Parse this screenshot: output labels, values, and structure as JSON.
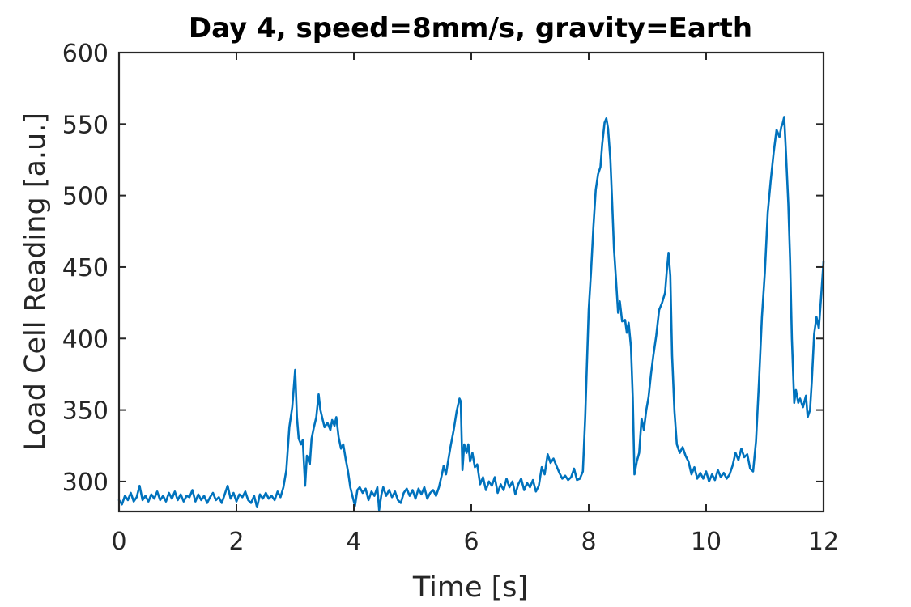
{
  "chart_data": {
    "type": "line",
    "title": "Day 4, speed=8mm/s, gravity=Earth",
    "xlabel": "Time [s]",
    "ylabel": "Load Cell Reading [a.u.]",
    "xlim": [
      0,
      12
    ],
    "ylim": [
      279,
      600
    ],
    "x_ticks": [
      0,
      2,
      4,
      6,
      8,
      10,
      12
    ],
    "y_ticks": [
      300,
      350,
      400,
      450,
      500,
      550,
      600
    ],
    "x_tick_labels": [
      "0",
      "2",
      "4",
      "6",
      "8",
      "10",
      "12"
    ],
    "y_tick_labels": [
      "300",
      "350",
      "400",
      "450",
      "500",
      "550",
      "600"
    ],
    "grid": false,
    "box": true,
    "series": [
      {
        "color": "#0072BD",
        "points": [
          [
            0.0,
            287
          ],
          [
            0.05,
            284
          ],
          [
            0.1,
            290
          ],
          [
            0.15,
            287
          ],
          [
            0.2,
            292
          ],
          [
            0.25,
            286
          ],
          [
            0.3,
            289
          ],
          [
            0.35,
            297
          ],
          [
            0.4,
            287
          ],
          [
            0.45,
            290
          ],
          [
            0.5,
            286
          ],
          [
            0.55,
            291
          ],
          [
            0.6,
            288
          ],
          [
            0.65,
            293
          ],
          [
            0.7,
            287
          ],
          [
            0.75,
            290
          ],
          [
            0.8,
            286
          ],
          [
            0.85,
            292
          ],
          [
            0.9,
            288
          ],
          [
            0.95,
            293
          ],
          [
            1.0,
            287
          ],
          [
            1.05,
            291
          ],
          [
            1.1,
            286
          ],
          [
            1.15,
            290
          ],
          [
            1.2,
            289
          ],
          [
            1.25,
            294
          ],
          [
            1.3,
            286
          ],
          [
            1.35,
            291
          ],
          [
            1.4,
            287
          ],
          [
            1.45,
            290
          ],
          [
            1.5,
            285
          ],
          [
            1.55,
            289
          ],
          [
            1.6,
            292
          ],
          [
            1.65,
            287
          ],
          [
            1.7,
            289
          ],
          [
            1.75,
            285
          ],
          [
            1.8,
            291
          ],
          [
            1.85,
            297
          ],
          [
            1.9,
            288
          ],
          [
            1.95,
            292
          ],
          [
            2.0,
            286
          ],
          [
            2.05,
            291
          ],
          [
            2.1,
            289
          ],
          [
            2.15,
            293
          ],
          [
            2.2,
            287
          ],
          [
            2.25,
            285
          ],
          [
            2.3,
            290
          ],
          [
            2.35,
            282
          ],
          [
            2.4,
            291
          ],
          [
            2.45,
            288
          ],
          [
            2.5,
            292
          ],
          [
            2.55,
            288
          ],
          [
            2.6,
            290
          ],
          [
            2.65,
            287
          ],
          [
            2.7,
            293
          ],
          [
            2.75,
            289
          ],
          [
            2.8,
            296
          ],
          [
            2.85,
            308
          ],
          [
            2.9,
            338
          ],
          [
            2.95,
            352
          ],
          [
            3.0,
            378
          ],
          [
            3.03,
            345
          ],
          [
            3.06,
            330
          ],
          [
            3.1,
            326
          ],
          [
            3.13,
            329
          ],
          [
            3.17,
            297
          ],
          [
            3.2,
            318
          ],
          [
            3.25,
            312
          ],
          [
            3.28,
            330
          ],
          [
            3.32,
            338
          ],
          [
            3.36,
            345
          ],
          [
            3.4,
            361
          ],
          [
            3.43,
            350
          ],
          [
            3.47,
            343
          ],
          [
            3.5,
            338
          ],
          [
            3.55,
            341
          ],
          [
            3.6,
            336
          ],
          [
            3.63,
            343
          ],
          [
            3.67,
            339
          ],
          [
            3.7,
            345
          ],
          [
            3.74,
            331
          ],
          [
            3.78,
            323
          ],
          [
            3.82,
            326
          ],
          [
            3.86,
            316
          ],
          [
            3.9,
            307
          ],
          [
            3.94,
            296
          ],
          [
            3.98,
            289
          ],
          [
            4.02,
            283
          ],
          [
            4.06,
            294
          ],
          [
            4.1,
            296
          ],
          [
            4.15,
            292
          ],
          [
            4.2,
            295
          ],
          [
            4.25,
            287
          ],
          [
            4.3,
            293
          ],
          [
            4.35,
            290
          ],
          [
            4.4,
            296
          ],
          [
            4.43,
            280
          ],
          [
            4.47,
            291
          ],
          [
            4.5,
            296
          ],
          [
            4.55,
            290
          ],
          [
            4.6,
            294
          ],
          [
            4.65,
            289
          ],
          [
            4.7,
            293
          ],
          [
            4.75,
            287
          ],
          [
            4.8,
            285
          ],
          [
            4.85,
            292
          ],
          [
            4.9,
            295
          ],
          [
            4.95,
            290
          ],
          [
            5.0,
            294
          ],
          [
            5.05,
            288
          ],
          [
            5.1,
            295
          ],
          [
            5.15,
            291
          ],
          [
            5.2,
            296
          ],
          [
            5.25,
            288
          ],
          [
            5.3,
            292
          ],
          [
            5.35,
            294
          ],
          [
            5.4,
            290
          ],
          [
            5.45,
            296
          ],
          [
            5.5,
            305
          ],
          [
            5.53,
            311
          ],
          [
            5.57,
            305
          ],
          [
            5.6,
            313
          ],
          [
            5.65,
            325
          ],
          [
            5.7,
            336
          ],
          [
            5.75,
            349
          ],
          [
            5.8,
            358
          ],
          [
            5.82,
            356
          ],
          [
            5.85,
            308
          ],
          [
            5.88,
            326
          ],
          [
            5.92,
            320
          ],
          [
            5.95,
            326
          ],
          [
            5.98,
            314
          ],
          [
            6.02,
            320
          ],
          [
            6.06,
            310
          ],
          [
            6.1,
            312
          ],
          [
            6.15,
            298
          ],
          [
            6.2,
            303
          ],
          [
            6.25,
            294
          ],
          [
            6.3,
            300
          ],
          [
            6.35,
            297
          ],
          [
            6.4,
            303
          ],
          [
            6.45,
            292
          ],
          [
            6.5,
            298
          ],
          [
            6.55,
            294
          ],
          [
            6.6,
            302
          ],
          [
            6.65,
            296
          ],
          [
            6.7,
            300
          ],
          [
            6.75,
            291
          ],
          [
            6.8,
            298
          ],
          [
            6.85,
            302
          ],
          [
            6.9,
            294
          ],
          [
            6.95,
            299
          ],
          [
            7.0,
            296
          ],
          [
            7.05,
            301
          ],
          [
            7.1,
            293
          ],
          [
            7.15,
            297
          ],
          [
            7.2,
            310
          ],
          [
            7.25,
            305
          ],
          [
            7.3,
            319
          ],
          [
            7.35,
            313
          ],
          [
            7.4,
            316
          ],
          [
            7.45,
            311
          ],
          [
            7.5,
            306
          ],
          [
            7.55,
            302
          ],
          [
            7.6,
            304
          ],
          [
            7.65,
            301
          ],
          [
            7.7,
            303
          ],
          [
            7.75,
            309
          ],
          [
            7.8,
            301
          ],
          [
            7.85,
            302
          ],
          [
            7.9,
            307
          ],
          [
            7.94,
            345
          ],
          [
            7.97,
            382
          ],
          [
            8.0,
            420
          ],
          [
            8.04,
            447
          ],
          [
            8.08,
            478
          ],
          [
            8.12,
            504
          ],
          [
            8.16,
            515
          ],
          [
            8.2,
            520
          ],
          [
            8.23,
            536
          ],
          [
            8.27,
            551
          ],
          [
            8.3,
            554
          ],
          [
            8.33,
            547
          ],
          [
            8.37,
            525
          ],
          [
            8.4,
            495
          ],
          [
            8.43,
            463
          ],
          [
            8.46,
            444
          ],
          [
            8.5,
            418
          ],
          [
            8.53,
            426
          ],
          [
            8.57,
            412
          ],
          [
            8.62,
            413
          ],
          [
            8.65,
            404
          ],
          [
            8.68,
            411
          ],
          [
            8.72,
            394
          ],
          [
            8.75,
            359
          ],
          [
            8.78,
            305
          ],
          [
            8.82,
            314
          ],
          [
            8.86,
            320
          ],
          [
            8.9,
            344
          ],
          [
            8.94,
            336
          ],
          [
            8.98,
            350
          ],
          [
            9.02,
            359
          ],
          [
            9.06,
            375
          ],
          [
            9.1,
            388
          ],
          [
            9.15,
            402
          ],
          [
            9.2,
            420
          ],
          [
            9.25,
            425
          ],
          [
            9.3,
            432
          ],
          [
            9.33,
            447
          ],
          [
            9.36,
            460
          ],
          [
            9.39,
            444
          ],
          [
            9.42,
            388
          ],
          [
            9.46,
            349
          ],
          [
            9.5,
            326
          ],
          [
            9.55,
            320
          ],
          [
            9.6,
            324
          ],
          [
            9.65,
            318
          ],
          [
            9.7,
            314
          ],
          [
            9.75,
            305
          ],
          [
            9.8,
            310
          ],
          [
            9.85,
            302
          ],
          [
            9.9,
            306
          ],
          [
            9.95,
            302
          ],
          [
            10.0,
            307
          ],
          [
            10.05,
            300
          ],
          [
            10.1,
            305
          ],
          [
            10.15,
            301
          ],
          [
            10.2,
            308
          ],
          [
            10.25,
            303
          ],
          [
            10.3,
            306
          ],
          [
            10.35,
            302
          ],
          [
            10.4,
            305
          ],
          [
            10.45,
            311
          ],
          [
            10.5,
            320
          ],
          [
            10.55,
            315
          ],
          [
            10.6,
            323
          ],
          [
            10.65,
            317
          ],
          [
            10.7,
            319
          ],
          [
            10.75,
            309
          ],
          [
            10.8,
            307
          ],
          [
            10.85,
            328
          ],
          [
            10.9,
            370
          ],
          [
            10.95,
            415
          ],
          [
            11.0,
            446
          ],
          [
            11.05,
            488
          ],
          [
            11.1,
            510
          ],
          [
            11.15,
            530
          ],
          [
            11.2,
            546
          ],
          [
            11.25,
            541
          ],
          [
            11.28,
            548
          ],
          [
            11.3,
            550
          ],
          [
            11.33,
            555
          ],
          [
            11.36,
            530
          ],
          [
            11.4,
            494
          ],
          [
            11.43,
            455
          ],
          [
            11.46,
            400
          ],
          [
            11.5,
            355
          ],
          [
            11.53,
            364
          ],
          [
            11.57,
            355
          ],
          [
            11.6,
            358
          ],
          [
            11.65,
            352
          ],
          [
            11.7,
            360
          ],
          [
            11.73,
            345
          ],
          [
            11.77,
            350
          ],
          [
            11.8,
            370
          ],
          [
            11.84,
            403
          ],
          [
            11.88,
            415
          ],
          [
            11.92,
            407
          ],
          [
            11.96,
            430
          ],
          [
            12.0,
            454
          ]
        ]
      }
    ]
  }
}
